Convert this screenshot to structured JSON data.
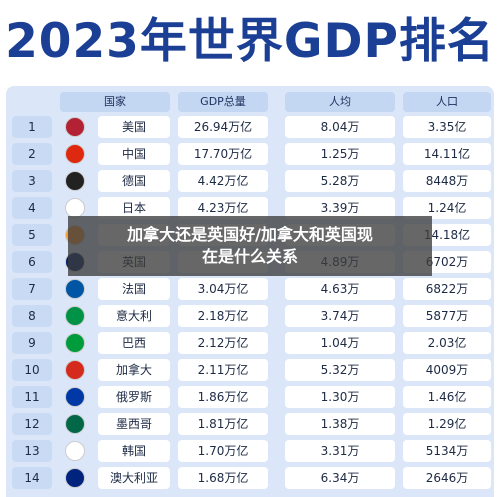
{
  "header": {
    "title": "2023年世界GDP排名"
  },
  "table": {
    "columns": {
      "country": "国家",
      "gdp": "GDP总量",
      "per_capita": "人均",
      "population": "人口"
    },
    "rows": [
      {
        "rank": "1",
        "country": "美国",
        "gdp": "26.94万亿",
        "per_capita": "8.04万",
        "population": "3.35亿"
      },
      {
        "rank": "2",
        "country": "中国",
        "gdp": "17.70万亿",
        "per_capita": "1.25万",
        "population": "14.11亿"
      },
      {
        "rank": "3",
        "country": "德国",
        "gdp": "4.42万亿",
        "per_capita": "5.28万",
        "population": "8448万"
      },
      {
        "rank": "4",
        "country": "日本",
        "gdp": "4.23万亿",
        "per_capita": "3.39万",
        "population": "1.24亿"
      },
      {
        "rank": "5",
        "population": "14.18亿"
      },
      {
        "rank": "6",
        "country": "英国",
        "per_capita": "4.89万",
        "population": "6702万"
      },
      {
        "rank": "7",
        "country": "法国",
        "gdp": "3.04万亿",
        "per_capita": "4.63万",
        "population": "6822万"
      },
      {
        "rank": "8",
        "country": "意大利",
        "gdp": "2.18万亿",
        "per_capita": "3.74万",
        "population": "5877万"
      },
      {
        "rank": "9",
        "country": "巴西",
        "gdp": "2.12万亿",
        "per_capita": "1.04万",
        "population": "2.03亿"
      },
      {
        "rank": "10",
        "country": "加拿大",
        "gdp": "2.11万亿",
        "per_capita": "5.32万",
        "population": "4009万"
      },
      {
        "rank": "11",
        "country": "俄罗斯",
        "gdp": "1.86万亿",
        "per_capita": "1.30万",
        "population": "1.46亿"
      },
      {
        "rank": "12",
        "country": "墨西哥",
        "gdp": "1.81万亿",
        "per_capita": "1.38万",
        "population": "1.29亿"
      },
      {
        "rank": "13",
        "country": "韩国",
        "gdp": "1.70万亿",
        "per_capita": "3.31万",
        "population": "5134万"
      },
      {
        "rank": "14",
        "country": "澳大利亚",
        "gdp": "1.68万亿",
        "per_capita": "6.34万",
        "population": "2646万"
      }
    ]
  },
  "overlay": {
    "line1": "加拿大还是英国好/加拿大和英国现",
    "line2": "在是什么关系"
  }
}
